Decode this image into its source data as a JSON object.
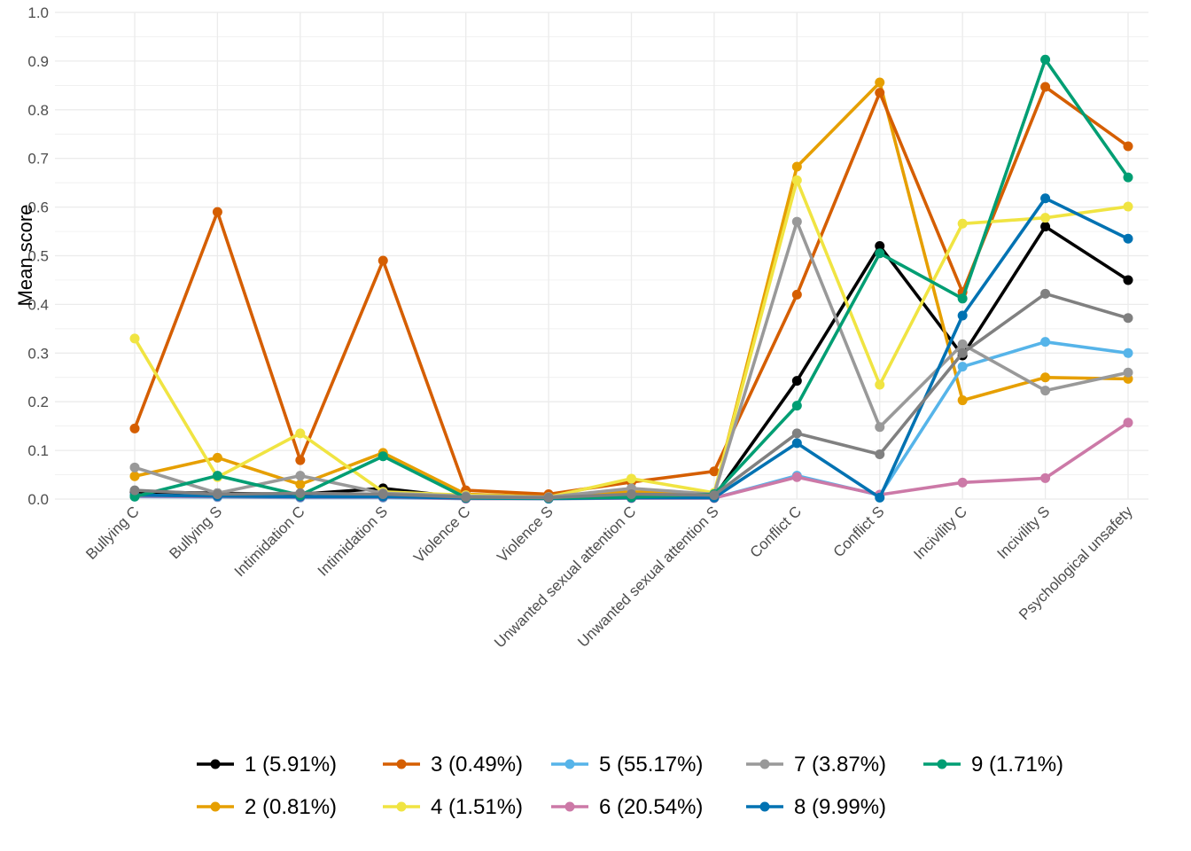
{
  "chart_data": {
    "type": "line",
    "title": "",
    "xlabel": "",
    "ylabel": "Mean score",
    "ylim": [
      0,
      1
    ],
    "y_ticks": [
      "0.0",
      "0.1",
      "0.2",
      "0.3",
      "0.4",
      "0.5",
      "0.6",
      "0.7",
      "0.8",
      "0.9",
      "1.0"
    ],
    "grid": true,
    "legend_position": "bottom",
    "categories": [
      "Bullying C",
      "Bullying S",
      "Intimidation C",
      "Intimidation S",
      "Violence C",
      "Violence S",
      "Unwanted sexual attention C",
      "Unwanted sexual attention S",
      "Conflict C",
      "Conflict S",
      "Incivility C",
      "Incivility S",
      "Psychological unsafety"
    ],
    "series": [
      {
        "name": "1 (5.91%)",
        "color": "#000000",
        "values": [
          0.015,
          0.012,
          0.01,
          0.022,
          0.003,
          0.002,
          0.004,
          0.005,
          0.243,
          0.52,
          0.295,
          0.56,
          0.45
        ]
      },
      {
        "name": "2 (0.81%)",
        "color": "#E69F00",
        "values": [
          0.047,
          0.085,
          0.03,
          0.095,
          0.01,
          0.005,
          0.015,
          0.01,
          0.683,
          0.856,
          0.203,
          0.25,
          0.247
        ]
      },
      {
        "name": "3 (0.49%)",
        "color": "#D55E00",
        "values": [
          0.145,
          0.59,
          0.08,
          0.49,
          0.018,
          0.01,
          0.035,
          0.057,
          0.42,
          0.835,
          0.425,
          0.847,
          0.725
        ]
      },
      {
        "name": "4 (1.51%)",
        "color": "#F0E442",
        "values": [
          0.33,
          0.045,
          0.135,
          0.015,
          0.008,
          0.004,
          0.042,
          0.013,
          0.655,
          0.235,
          0.566,
          0.578,
          0.601
        ]
      },
      {
        "name": "5 (55.17%)",
        "color": "#56B4E9",
        "values": [
          0.005,
          0.004,
          0.003,
          0.003,
          0.001,
          0.001,
          0.002,
          0.002,
          0.048,
          0.008,
          0.272,
          0.323,
          0.3
        ]
      },
      {
        "name": "6 (20.54%)",
        "color": "#CC79A7",
        "values": [
          0.006,
          0.005,
          0.004,
          0.004,
          0.001,
          0.001,
          0.002,
          0.002,
          0.045,
          0.009,
          0.034,
          0.043,
          0.157
        ]
      },
      {
        "name": "7 (3.87%)",
        "color": "#999999",
        "values": [
          0.065,
          0.012,
          0.048,
          0.012,
          0.006,
          0.004,
          0.022,
          0.01,
          0.57,
          0.148,
          0.318,
          0.223,
          0.26
        ]
      },
      {
        "name": "8 (9.99%)",
        "color": "#0072B2",
        "values": [
          0.008,
          0.006,
          0.005,
          0.005,
          0.002,
          0.001,
          0.003,
          0.003,
          0.115,
          0.003,
          0.377,
          0.618,
          0.535
        ]
      },
      {
        "name": "9 (1.71%)",
        "color": "#009E73",
        "values": [
          0.005,
          0.048,
          0.008,
          0.088,
          0.003,
          0.002,
          0.004,
          0.01,
          0.192,
          0.505,
          0.412,
          0.903,
          0.661
        ]
      },
      {
        "name": "",
        "color": "#808080",
        "values": [
          0.018,
          0.01,
          0.012,
          0.01,
          0.004,
          0.003,
          0.01,
          0.008,
          0.135,
          0.092,
          0.3,
          0.422,
          0.372
        ]
      }
    ]
  }
}
